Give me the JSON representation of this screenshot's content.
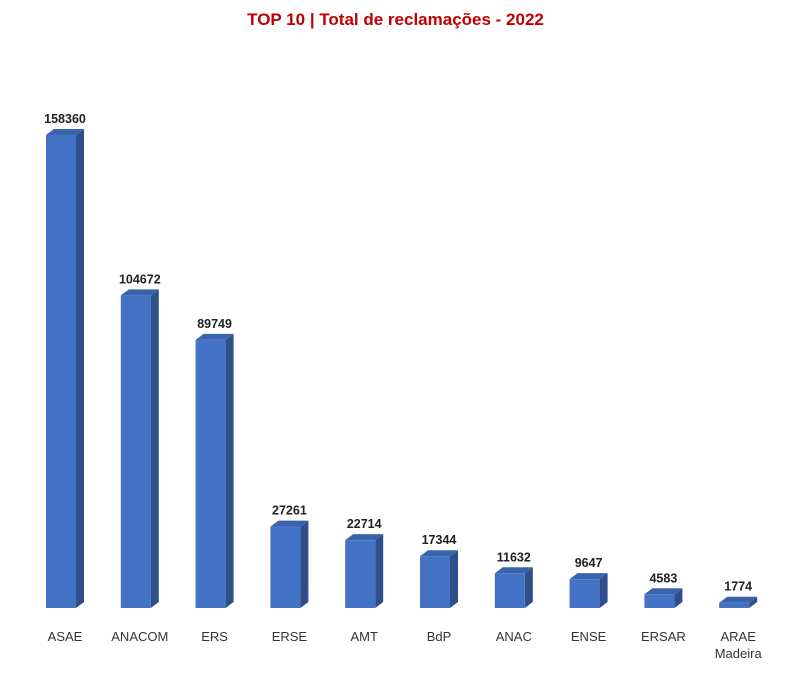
{
  "chart_data": {
    "type": "bar",
    "title": "TOP 10 | Total de reclamações - 2022",
    "categories": [
      [
        "ASAE"
      ],
      [
        "ANACOM"
      ],
      [
        "ERS"
      ],
      [
        "ERSE"
      ],
      [
        "AMT"
      ],
      [
        "BdP"
      ],
      [
        "ANAC"
      ],
      [
        "ENSE"
      ],
      [
        "ERSAR"
      ],
      [
        "ARAE",
        "Madeira"
      ]
    ],
    "values": [
      158360,
      104672,
      89749,
      27261,
      22714,
      17344,
      11632,
      9647,
      4583,
      1774
    ],
    "data_labels": [
      "158360",
      "104672",
      "89749",
      "27261",
      "22714",
      "17344",
      "11632",
      "9647",
      "4583",
      "1774"
    ],
    "xlabel": "",
    "ylabel": "",
    "ylim": [
      0,
      160000
    ],
    "grid": false,
    "legend": "none",
    "style": "3d-column",
    "colors": {
      "front": "#4472c4",
      "side": "#2e4f8a",
      "top": "#3a63ad",
      "title": "#c00000"
    }
  }
}
